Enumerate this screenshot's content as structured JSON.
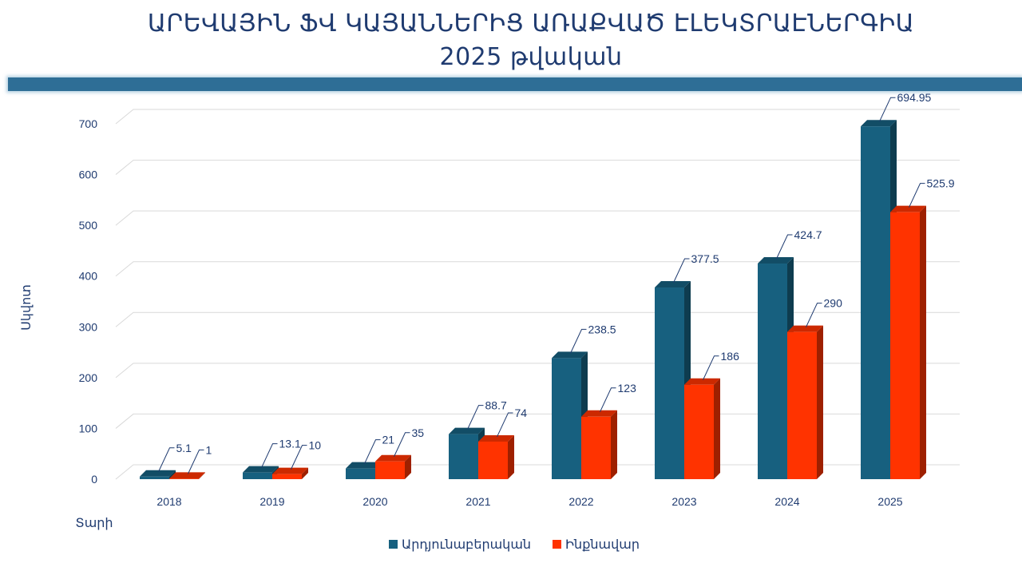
{
  "title": {
    "line1": "ԱՐԵՎԱՅԻՆ ՖՎ ԿԱՅԱՆՆԵՐԻՑ ԱՌԱՔՎԱԾ ԷԼԵԿՏՐԱԷՆԵՐԳԻԱ",
    "line2": "2025 թվական"
  },
  "colors": {
    "band": "#2e6e96",
    "series1": "#17607f",
    "series2": "#ff3300",
    "text": "#1f3b70"
  },
  "chart_data": {
    "type": "bar",
    "categories": [
      "2018",
      "2019",
      "2020",
      "2021",
      "2022",
      "2023",
      "2024",
      "2025"
    ],
    "series": [
      {
        "name": "Արդյունաբերական",
        "color": "#17607f",
        "values": [
          5.1,
          13.1,
          21,
          88.7,
          238.5,
          377.5,
          424.7,
          694.95
        ],
        "labels": [
          "5.1",
          "13.1",
          "21",
          "88.7",
          "238.5",
          "377.5",
          "424.7",
          "694.95"
        ]
      },
      {
        "name": "Ինքնավար",
        "color": "#ff3300",
        "values": [
          1,
          10,
          35,
          74,
          123,
          186,
          290,
          525.9
        ],
        "labels": [
          "1",
          "10",
          "35",
          "74",
          "123",
          "186",
          "290",
          "525.9"
        ]
      }
    ],
    "xlabel": "Տարի",
    "ylabel": "Սկվոտ",
    "ylim": [
      0,
      700
    ],
    "yticks": [
      "0",
      "100",
      "200",
      "300",
      "400",
      "500",
      "600",
      "700"
    ],
    "grid": true,
    "legend": "bottom-center",
    "style": "3d-clustered-column"
  }
}
